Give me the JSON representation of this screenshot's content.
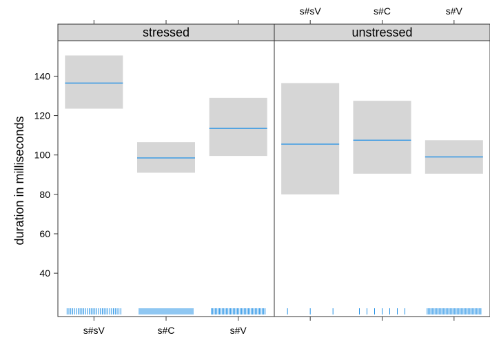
{
  "chart_data": {
    "type": "effect-plot",
    "ylabel": "duration in milliseconds",
    "ylim": [
      18,
      158
    ],
    "y_ticks": [
      40,
      60,
      80,
      100,
      120,
      140
    ],
    "categories": [
      "s#sV",
      "s#C",
      "s#V"
    ],
    "colors": {
      "line": "#1f8fe6",
      "band": "#d6d6d6",
      "strip": "#d6d6d6"
    },
    "panels": [
      {
        "name": "stressed",
        "label_side": "bottom",
        "values": [
          136.5,
          98.5,
          113.5
        ],
        "lower": [
          123.5,
          91,
          99.5
        ],
        "upper": [
          150.5,
          106.5,
          129
        ],
        "rug_counts": [
          30,
          40,
          40
        ]
      },
      {
        "name": "unstressed",
        "label_side": "top",
        "values": [
          105.5,
          107.5,
          99
        ],
        "lower": [
          80,
          90.5,
          90.5
        ],
        "upper": [
          136.5,
          127.5,
          107.5
        ],
        "rug_counts": [
          3,
          7,
          40
        ]
      }
    ]
  }
}
